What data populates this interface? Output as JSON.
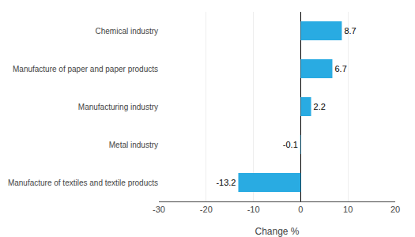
{
  "chart_data": {
    "type": "bar",
    "orientation": "horizontal",
    "categories": [
      "Manufacture of textiles and textile products",
      "Metal industry",
      "Manufacturing industry",
      "Manufacture of paper and paper products",
      "Chemical industry"
    ],
    "values": [
      -13.2,
      -0.1,
      2.2,
      6.7,
      8.7
    ],
    "color": "#29abe2",
    "xlabel": "Change %",
    "xlim": [
      -30,
      20
    ],
    "xticks": [
      -30,
      -20,
      -10,
      0,
      10,
      20
    ],
    "grid": true,
    "data_labels": true
  }
}
